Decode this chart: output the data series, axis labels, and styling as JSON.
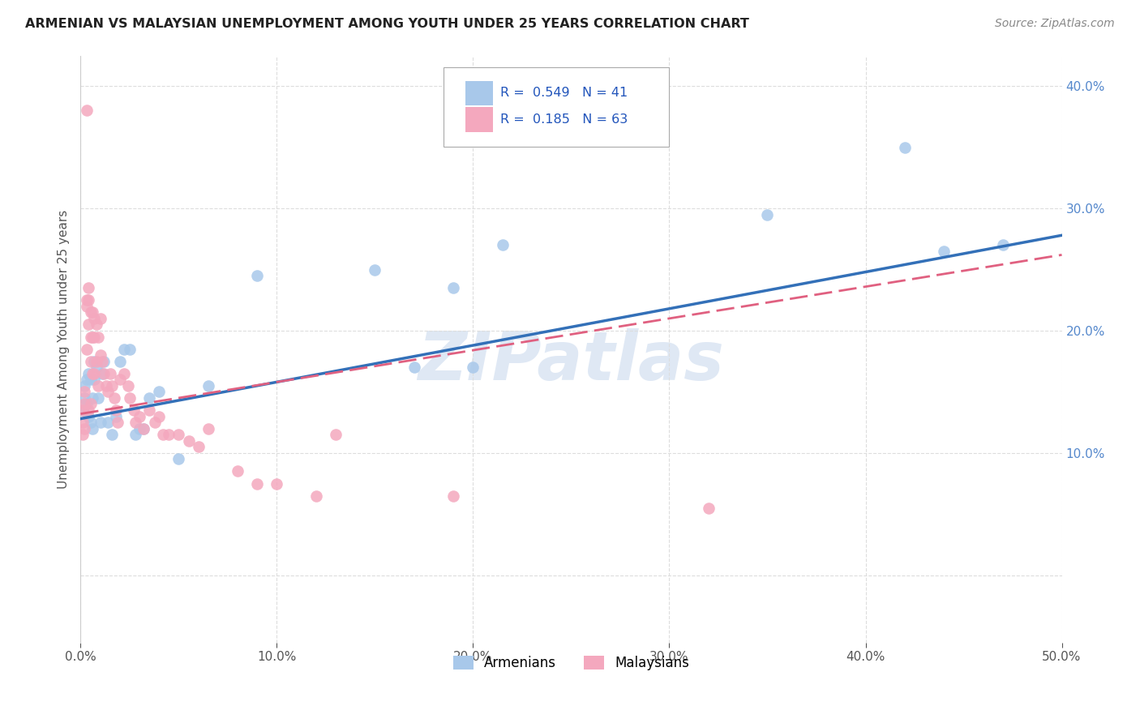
{
  "title": "ARMENIAN VS MALAYSIAN UNEMPLOYMENT AMONG YOUTH UNDER 25 YEARS CORRELATION CHART",
  "source": "Source: ZipAtlas.com",
  "ylabel": "Unemployment Among Youth under 25 years",
  "xlim": [
    0,
    0.5
  ],
  "ylim": [
    -0.055,
    0.425
  ],
  "color_armenian": "#a8c8ea",
  "color_malaysian": "#f4a8be",
  "legend_r_armenian": "0.549",
  "legend_n_armenian": "41",
  "legend_r_malaysian": "0.185",
  "legend_n_malaysian": "63",
  "line_color_armenian": "#3370b8",
  "line_color_malaysian": "#e06080",
  "watermark": "ZIPatlas",
  "background_color": "#ffffff",
  "grid_color": "#dddddd",
  "armenian_x": [
    0.001,
    0.002,
    0.002,
    0.003,
    0.003,
    0.004,
    0.004,
    0.005,
    0.005,
    0.006,
    0.006,
    0.007,
    0.007,
    0.008,
    0.009,
    0.01,
    0.011,
    0.012,
    0.014,
    0.016,
    0.018,
    0.02,
    0.022,
    0.025,
    0.028,
    0.03,
    0.032,
    0.035,
    0.04,
    0.05,
    0.065,
    0.09,
    0.15,
    0.17,
    0.19,
    0.2,
    0.215,
    0.35,
    0.42,
    0.44,
    0.47
  ],
  "armenian_y": [
    0.135,
    0.155,
    0.145,
    0.16,
    0.14,
    0.165,
    0.13,
    0.16,
    0.125,
    0.145,
    0.12,
    0.175,
    0.16,
    0.17,
    0.145,
    0.125,
    0.165,
    0.175,
    0.125,
    0.115,
    0.13,
    0.175,
    0.185,
    0.185,
    0.115,
    0.12,
    0.12,
    0.145,
    0.15,
    0.095,
    0.155,
    0.245,
    0.25,
    0.17,
    0.235,
    0.17,
    0.27,
    0.295,
    0.35,
    0.265,
    0.27
  ],
  "malaysian_x": [
    0.001,
    0.001,
    0.001,
    0.002,
    0.002,
    0.002,
    0.003,
    0.003,
    0.003,
    0.003,
    0.004,
    0.004,
    0.004,
    0.004,
    0.005,
    0.005,
    0.005,
    0.005,
    0.006,
    0.006,
    0.006,
    0.007,
    0.007,
    0.007,
    0.008,
    0.008,
    0.009,
    0.009,
    0.01,
    0.01,
    0.011,
    0.012,
    0.013,
    0.014,
    0.015,
    0.016,
    0.017,
    0.018,
    0.019,
    0.02,
    0.022,
    0.024,
    0.025,
    0.027,
    0.028,
    0.03,
    0.032,
    0.035,
    0.038,
    0.04,
    0.042,
    0.045,
    0.05,
    0.055,
    0.06,
    0.065,
    0.08,
    0.09,
    0.1,
    0.12,
    0.13,
    0.19,
    0.32
  ],
  "malaysian_y": [
    0.135,
    0.125,
    0.115,
    0.15,
    0.14,
    0.12,
    0.38,
    0.225,
    0.22,
    0.185,
    0.235,
    0.225,
    0.205,
    0.135,
    0.215,
    0.195,
    0.175,
    0.14,
    0.215,
    0.195,
    0.165,
    0.21,
    0.195,
    0.165,
    0.205,
    0.175,
    0.195,
    0.155,
    0.21,
    0.18,
    0.175,
    0.165,
    0.155,
    0.15,
    0.165,
    0.155,
    0.145,
    0.135,
    0.125,
    0.16,
    0.165,
    0.155,
    0.145,
    0.135,
    0.125,
    0.13,
    0.12,
    0.135,
    0.125,
    0.13,
    0.115,
    0.115,
    0.115,
    0.11,
    0.105,
    0.12,
    0.085,
    0.075,
    0.075,
    0.065,
    0.115,
    0.065,
    0.055
  ]
}
